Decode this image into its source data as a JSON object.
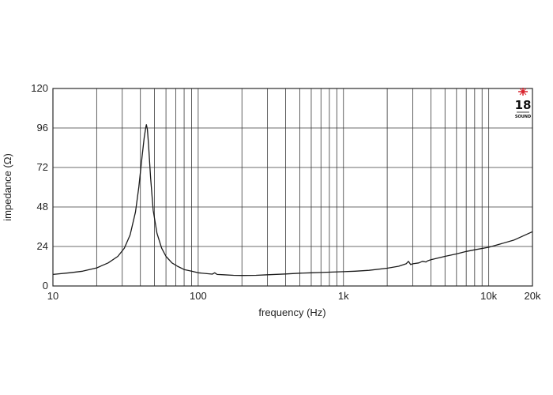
{
  "chart_data": {
    "type": "line",
    "title": "",
    "xlabel": "frequency (Hz)",
    "ylabel": "impedance (Ω)",
    "x_scale": "log",
    "xlim": [
      10,
      20000
    ],
    "ylim": [
      0,
      120
    ],
    "grid": true,
    "legend": "none",
    "x_tick_labels": [
      {
        "value": 10,
        "label": "10"
      },
      {
        "value": 100,
        "label": "100"
      },
      {
        "value": 1000,
        "label": "1k"
      },
      {
        "value": 10000,
        "label": "10k"
      },
      {
        "value": 20000,
        "label": "20k"
      }
    ],
    "y_ticks": [
      {
        "value": 120,
        "label": "120"
      },
      {
        "value": 96,
        "label": "96"
      },
      {
        "value": 72,
        "label": "72"
      },
      {
        "value": 48,
        "label": "48"
      },
      {
        "value": 24,
        "label": "24"
      },
      {
        "value": 0,
        "label": "0"
      }
    ],
    "series": [
      {
        "color": "#1a1a1a",
        "x": [
          10,
          13,
          16,
          20,
          24,
          28,
          31,
          34,
          37,
          39,
          41,
          42.5,
          43.5,
          44,
          44.7,
          45.5,
          47,
          49,
          52,
          56,
          60,
          66,
          72,
          80,
          90,
          100,
          115,
          125,
          130,
          135,
          150,
          175,
          200,
          250,
          300,
          400,
          500,
          600,
          700,
          800,
          1000,
          1200,
          1500,
          2000,
          2400,
          2700,
          2800,
          2900,
          3000,
          3300,
          3500,
          3700,
          3800,
          4000,
          5000,
          6000,
          7000,
          8000,
          10000,
          12000,
          15000,
          20000
        ],
        "y": [
          7,
          8,
          9,
          11,
          14,
          18,
          23,
          31,
          45,
          60,
          78,
          90,
          96,
          98,
          95,
          86,
          66,
          46,
          32,
          23,
          18,
          14,
          12,
          10,
          9,
          8,
          7.5,
          7.2,
          8,
          7,
          6.8,
          6.5,
          6.4,
          6.5,
          6.8,
          7.3,
          7.8,
          8,
          8.2,
          8.4,
          8.7,
          9,
          9.5,
          10.8,
          12,
          13.5,
          15,
          13,
          13.5,
          14,
          15,
          14.6,
          15.3,
          16,
          18,
          19.5,
          21,
          22,
          23.5,
          25.5,
          28,
          33
        ]
      }
    ]
  },
  "logo": {
    "text": "18",
    "subtext": "SOUND",
    "accent_color": "#d9232d"
  }
}
